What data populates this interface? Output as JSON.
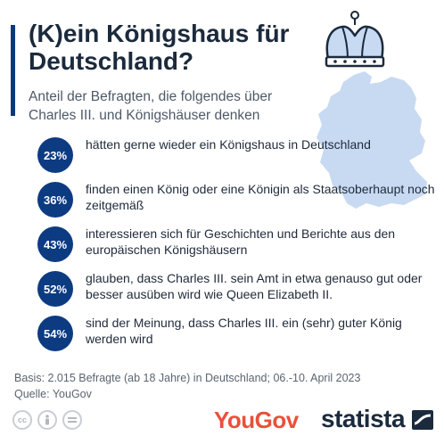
{
  "title": "(K)ein Königshaus für Deutschland?",
  "subtitle": "Anteil der Befragten, die folgendes über Charles III. und Königshäuser denken",
  "chart_data": {
    "type": "table",
    "unit": "%",
    "items": [
      {
        "value": 23,
        "label": "23%",
        "text": "hätten gerne wieder ein Königshaus in Deutschland"
      },
      {
        "value": 36,
        "label": "36%",
        "text": "finden einen König oder eine Königin als Staatsoberhaupt noch zeitgemäß"
      },
      {
        "value": 43,
        "label": "43%",
        "text": "interessieren sich für Geschichten und Berichte aus den europäischen Königshäusern"
      },
      {
        "value": 52,
        "label": "52%",
        "text": "glauben, dass Charles III. sein Amt in etwa genauso gut oder besser ausüben wird wie Queen Elizabeth II."
      },
      {
        "value": 54,
        "label": "54%",
        "text": "sind der Meinung, dass Charles III. ein (sehr) guter König werden wird"
      }
    ]
  },
  "footer": {
    "basis": "Basis: 2.015 Befragte (ab 18 Jahre) in Deutschland; 06.-10. April 2023",
    "source": "Quelle: YouGov"
  },
  "brands": {
    "yougov": "YouGov",
    "statista": "statista"
  },
  "icons": [
    "crown-icon",
    "germany-map",
    "cc-icon",
    "by-icon",
    "nd-icon",
    "statista-logo-icon"
  ],
  "colors": {
    "badge": "#0c3b82",
    "accent": "#0b3a78",
    "map": "#c8daf2",
    "yougov": "#e8513a"
  }
}
